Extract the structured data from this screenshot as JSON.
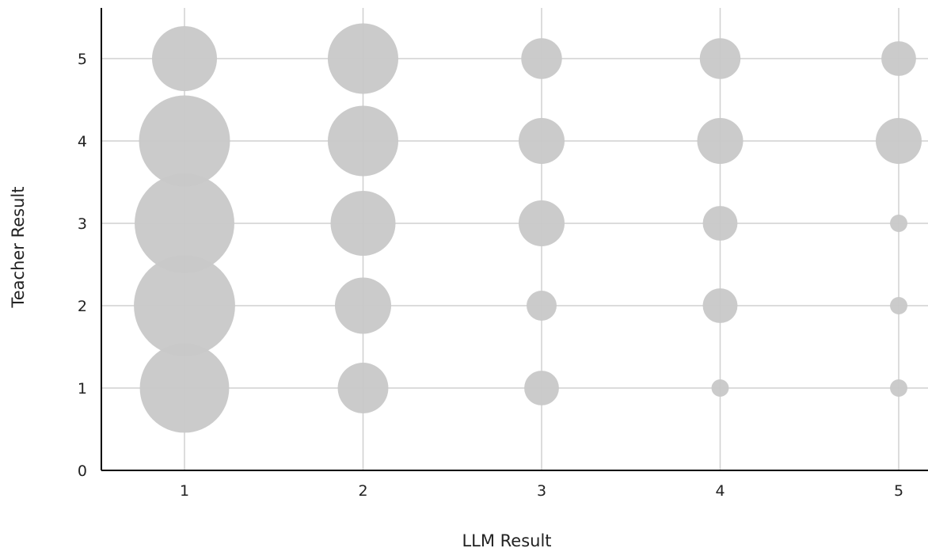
{
  "chart_data": {
    "type": "scatter",
    "variant": "bubble",
    "title": "",
    "xlabel": "LLM Result",
    "ylabel": "Teacher Result",
    "x_ticks": [
      "1",
      "2",
      "3",
      "4",
      "5"
    ],
    "y_ticks": [
      "0",
      "1",
      "2",
      "3",
      "4",
      "5"
    ],
    "xlim": [
      0.53,
      5.17
    ],
    "ylim": [
      0,
      5.6
    ],
    "grid": true,
    "legend": "none",
    "bubble_color": "#c8c8c8",
    "grid_color": "#d0d0d0",
    "axis_color": "#000000",
    "size_unit": "relative bubble area",
    "points": [
      {
        "x": 1,
        "y": 1,
        "size": 53
      },
      {
        "x": 1,
        "y": 2,
        "size": 68
      },
      {
        "x": 1,
        "y": 3,
        "size": 66
      },
      {
        "x": 1,
        "y": 4,
        "size": 55
      },
      {
        "x": 1,
        "y": 5,
        "size": 28
      },
      {
        "x": 2,
        "y": 1,
        "size": 17
      },
      {
        "x": 2,
        "y": 2,
        "size": 21
      },
      {
        "x": 2,
        "y": 3,
        "size": 28
      },
      {
        "x": 2,
        "y": 4,
        "size": 33
      },
      {
        "x": 2,
        "y": 5,
        "size": 33
      },
      {
        "x": 3,
        "y": 1,
        "size": 8
      },
      {
        "x": 3,
        "y": 2,
        "size": 6
      },
      {
        "x": 3,
        "y": 3,
        "size": 14
      },
      {
        "x": 3,
        "y": 4,
        "size": 14
      },
      {
        "x": 3,
        "y": 5,
        "size": 11
      },
      {
        "x": 4,
        "y": 1,
        "size": 2
      },
      {
        "x": 4,
        "y": 2,
        "size": 8
      },
      {
        "x": 4,
        "y": 3,
        "size": 8
      },
      {
        "x": 4,
        "y": 4,
        "size": 14
      },
      {
        "x": 4,
        "y": 5,
        "size": 11
      },
      {
        "x": 5,
        "y": 1,
        "size": 2
      },
      {
        "x": 5,
        "y": 2,
        "size": 2
      },
      {
        "x": 5,
        "y": 3,
        "size": 2
      },
      {
        "x": 5,
        "y": 4,
        "size": 14
      },
      {
        "x": 5,
        "y": 5,
        "size": 8
      }
    ]
  }
}
